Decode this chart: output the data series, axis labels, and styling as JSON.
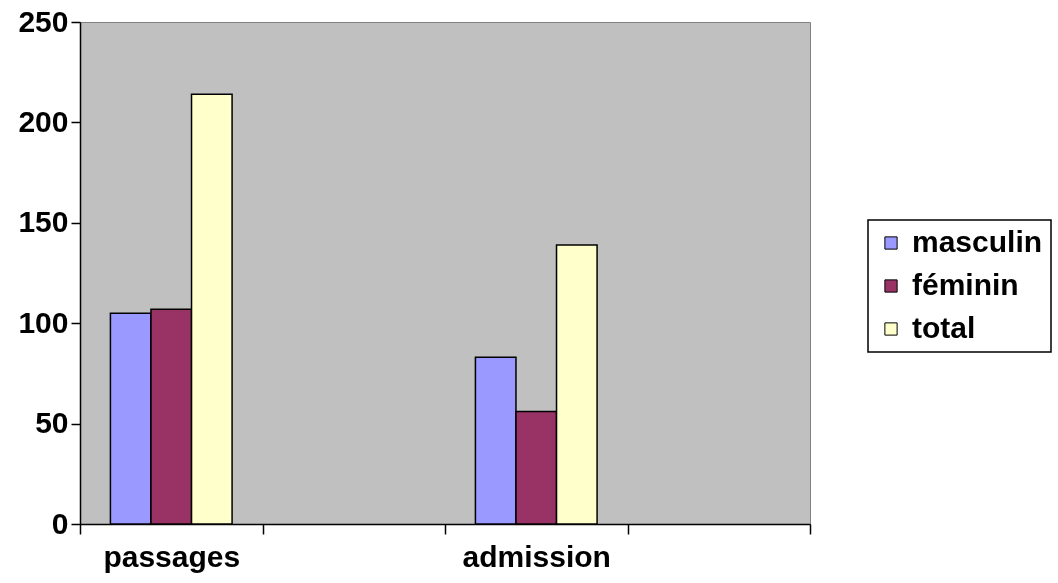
{
  "chart_data": {
    "type": "bar",
    "categories": [
      "passages",
      null,
      "admission",
      null
    ],
    "series": [
      {
        "name": "masculin",
        "color": "#9999ff",
        "values": [
          105,
          null,
          83,
          null
        ]
      },
      {
        "name": "féminin",
        "color": "#993366",
        "values": [
          107,
          null,
          56,
          null
        ]
      },
      {
        "name": "total",
        "color": "#ffffcc",
        "values": [
          214,
          null,
          139,
          null
        ]
      }
    ],
    "ylim": [
      0,
      250
    ],
    "yticks": [
      0,
      50,
      100,
      150,
      200,
      250
    ],
    "legend": "right"
  }
}
